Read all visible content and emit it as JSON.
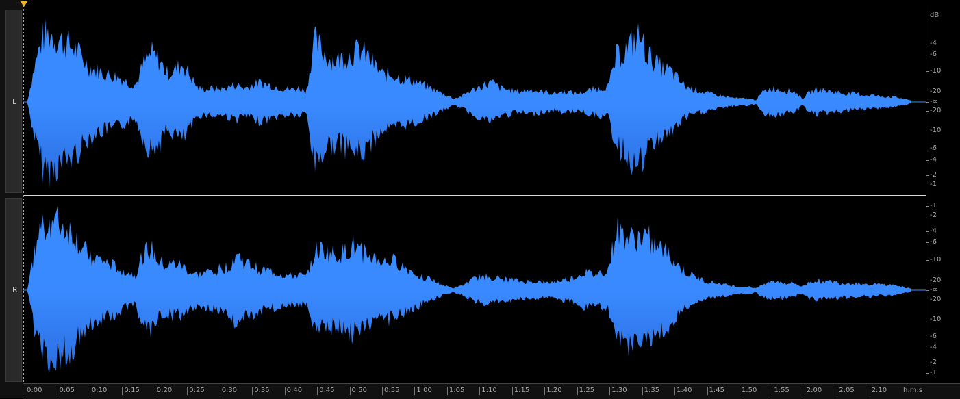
{
  "channels": [
    {
      "label": "L",
      "peaks": [
        0.02,
        0.55,
        0.95,
        0.98,
        0.9,
        0.85,
        0.78,
        0.65,
        0.5,
        0.45,
        0.4,
        0.38,
        0.35,
        0.28,
        0.25,
        0.55,
        0.7,
        0.6,
        0.42,
        0.45,
        0.55,
        0.38,
        0.2,
        0.18,
        0.2,
        0.18,
        0.22,
        0.25,
        0.2,
        0.24,
        0.28,
        0.25,
        0.22,
        0.2,
        0.18,
        0.2,
        0.15,
        0.88,
        0.75,
        0.62,
        0.6,
        0.65,
        0.7,
        0.75,
        0.65,
        0.5,
        0.38,
        0.4,
        0.35,
        0.32,
        0.3,
        0.25,
        0.2,
        0.15,
        0.1,
        0.05,
        0.08,
        0.15,
        0.2,
        0.25,
        0.28,
        0.2,
        0.18,
        0.15,
        0.16,
        0.18,
        0.15,
        0.14,
        0.12,
        0.15,
        0.14,
        0.12,
        0.15,
        0.18,
        0.2,
        0.22,
        0.65,
        0.72,
        0.85,
        0.95,
        0.7,
        0.58,
        0.48,
        0.45,
        0.32,
        0.22,
        0.18,
        0.15,
        0.12,
        0.1,
        0.08,
        0.06,
        0.05,
        0.05,
        0.03,
        0.15,
        0.2,
        0.18,
        0.16,
        0.15,
        0.05,
        0.14,
        0.18,
        0.16,
        0.15,
        0.13,
        0.12,
        0.12,
        0.1,
        0.1,
        0.08,
        0.08,
        0.07,
        0.05,
        0.02
      ]
    },
    {
      "label": "R",
      "peaks": [
        0.02,
        0.6,
        0.98,
        1.0,
        0.96,
        0.88,
        0.8,
        0.6,
        0.5,
        0.45,
        0.4,
        0.35,
        0.3,
        0.25,
        0.22,
        0.55,
        0.58,
        0.4,
        0.35,
        0.38,
        0.35,
        0.25,
        0.22,
        0.25,
        0.28,
        0.3,
        0.35,
        0.52,
        0.4,
        0.35,
        0.3,
        0.28,
        0.25,
        0.22,
        0.2,
        0.22,
        0.18,
        0.55,
        0.58,
        0.52,
        0.5,
        0.55,
        0.62,
        0.55,
        0.5,
        0.45,
        0.4,
        0.42,
        0.38,
        0.3,
        0.25,
        0.2,
        0.16,
        0.1,
        0.06,
        0.03,
        0.06,
        0.12,
        0.18,
        0.2,
        0.18,
        0.16,
        0.15,
        0.14,
        0.12,
        0.12,
        0.12,
        0.1,
        0.12,
        0.14,
        0.16,
        0.2,
        0.26,
        0.22,
        0.25,
        0.3,
        0.85,
        0.78,
        0.72,
        0.75,
        0.78,
        0.62,
        0.58,
        0.48,
        0.35,
        0.25,
        0.2,
        0.15,
        0.12,
        0.1,
        0.08,
        0.06,
        0.05,
        0.05,
        0.03,
        0.1,
        0.12,
        0.12,
        0.1,
        0.1,
        0.05,
        0.12,
        0.14,
        0.12,
        0.12,
        0.1,
        0.1,
        0.1,
        0.09,
        0.09,
        0.08,
        0.08,
        0.07,
        0.05,
        0.02
      ]
    }
  ],
  "colors": {
    "wave": "#3a8aff",
    "wave_dark": "#2a6ee0",
    "separator": "#d8d8d8",
    "playhead": "#f0b020"
  },
  "db_scale": {
    "unit": "dB",
    "top_labels": [
      "-1",
      "-2",
      "-4",
      "-6",
      "-10",
      "-20",
      "-∞",
      "-20",
      "-10",
      "-6",
      "-4",
      "-2",
      "-1"
    ],
    "ch1_labels": [
      "-4",
      "-6",
      "-10",
      "-20",
      "-∞",
      "-20",
      "-10",
      "-6",
      "-4",
      "-2",
      "-1"
    ]
  },
  "time_ruler": {
    "labels": [
      "0:00",
      "0:05",
      "0:10",
      "0:15",
      "0:20",
      "0:25",
      "0:30",
      "0:35",
      "0:40",
      "0:45",
      "0:50",
      "0:55",
      "1:00",
      "1:05",
      "1:10",
      "1:15",
      "1:20",
      "1:25",
      "1:30",
      "1:35",
      "1:40",
      "1:45",
      "1:50",
      "1:55",
      "2:00",
      "2:05",
      "2:10"
    ],
    "units": "h:m:s"
  }
}
